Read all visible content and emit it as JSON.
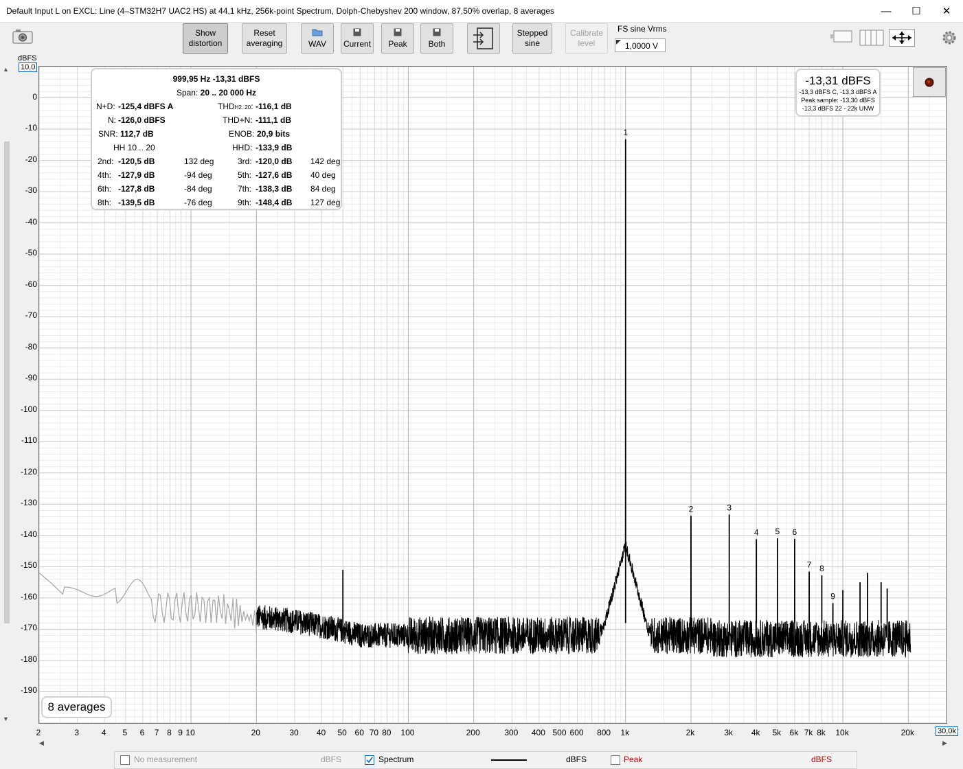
{
  "window": {
    "title": "Default Input L on EXCL: Line (4–STM32H7 UAC2 HS) at 44,1 kHz, 256k-point Spectrum, Dolph-Chebyshev 200 window, 87,50% overlap, 8 averages",
    "minimize_glyph": "—",
    "maximize_glyph": "☐",
    "close_glyph": "✕"
  },
  "toolbar": {
    "show_distortion": [
      "Show",
      "distortion"
    ],
    "reset_averaging": [
      "Reset",
      "averaging"
    ],
    "wav": "WAV",
    "current": "Current",
    "peak": "Peak",
    "both": "Both",
    "stepped_sine": [
      "Stepped",
      "sine"
    ],
    "calibrate_level": [
      "Calibrate",
      "level"
    ],
    "fs_sine_label": "FS sine Vrms",
    "fs_sine_value": "1,0000 V"
  },
  "axes": {
    "y_unit": "dBFS",
    "y_top_box": "10,0",
    "x_right_box": "30,0k",
    "y_ticks": [
      "0",
      "-10",
      "-20",
      "-30",
      "-40",
      "-50",
      "-60",
      "-70",
      "-80",
      "-90",
      "-100",
      "-110",
      "-120",
      "-130",
      "-140",
      "-150",
      "-160",
      "-170",
      "-180",
      "-190"
    ],
    "x_ticks": [
      "2",
      "3",
      "4",
      "5",
      "6",
      "7",
      "8",
      "9",
      "10",
      "20",
      "30",
      "40",
      "50",
      "60",
      "70",
      "80",
      "100",
      "200",
      "300",
      "400",
      "500",
      "600",
      "800",
      "1k",
      "2k",
      "3k",
      "4k",
      "5k",
      "6k",
      "7k",
      "8k",
      "10k",
      "20k"
    ]
  },
  "info": {
    "header": "999,95 Hz  -13,31 dBFS",
    "span_label": "Span:",
    "span_value": "20 .. 20 000 Hz",
    "nd_label": "N+D:",
    "nd_value": "-125,4 dBFS A",
    "thd_label": "THD",
    "thd_sub": "H2..20",
    "thd_value": "-116,1 dB",
    "n_label": "N:",
    "n_value": "-126,0 dBFS",
    "thdn_label": "THD+N:",
    "thdn_value": "-111,1 dB",
    "snr_label": "SNR:",
    "snr_value": "112,7 dB",
    "enob_label": "ENOB:",
    "enob_value": "20,9 bits",
    "hh_label": "HH 10 .. 20",
    "hhd_label": "HHD:",
    "hhd_value": "-133,9 dB",
    "harmonics": [
      {
        "l1": "2nd:",
        "v1": "-120,5 dB",
        "p1": "132 deg",
        "l2": "3rd:",
        "v2": "-120,0 dB",
        "p2": "142 deg"
      },
      {
        "l1": "4th:",
        "v1": "-127,9 dB",
        "p1": "-94 deg",
        "l2": "5th:",
        "v2": "-127,6 dB",
        "p2": "40 deg"
      },
      {
        "l1": "6th:",
        "v1": "-127,8 dB",
        "p1": "-84 deg",
        "l2": "7th:",
        "v2": "-138,3 dB",
        "p2": "84 deg"
      },
      {
        "l1": "8th:",
        "v1": "-139,5 dB",
        "p1": "-76 deg",
        "l2": "9th:",
        "v2": "-148,4 dB",
        "p2": "127 deg"
      }
    ]
  },
  "level": {
    "main": "-13,31 dBFS",
    "line1": "-13,3 dBFS C, -13,3 dBFS A",
    "line2": "Peak sample: -13,30 dBFS",
    "line3": "-13,3 dBFS 22 - 22k UNW"
  },
  "averages_label": "8 averages",
  "footer": {
    "no_measurement": "No measurement",
    "unit1": "dBFS",
    "spectrum": "Spectrum",
    "unit2": "dBFS",
    "peak": "Peak",
    "unit3": "dBFS"
  },
  "colors": {
    "trace": "#000000",
    "trace_grey": "#aaaaaa",
    "peak_red": "#c00000",
    "accent_blue": "#0066cc"
  },
  "chart_data": {
    "type": "line",
    "x_scale": "log",
    "xlim": [
      2,
      30000
    ],
    "ylim": [
      -200,
      10
    ],
    "ylabel": "dBFS",
    "peaks": [
      {
        "label": "1",
        "freq": 1000,
        "db": -13.3
      },
      {
        "label": "2",
        "freq": 2000,
        "db": -133.8
      },
      {
        "label": "3",
        "freq": 3000,
        "db": -133.3
      },
      {
        "label": "4",
        "freq": 4000,
        "db": -141.2
      },
      {
        "label": "5",
        "freq": 5000,
        "db": -140.9
      },
      {
        "label": "6",
        "freq": 6000,
        "db": -141.1
      },
      {
        "label": "7",
        "freq": 7000,
        "db": -151.6
      },
      {
        "label": "8",
        "freq": 8000,
        "db": -152.8
      },
      {
        "label": "9",
        "freq": 9000,
        "db": -161.7
      }
    ],
    "spurs": [
      {
        "freq": 50,
        "db": -151
      },
      {
        "freq": 10000,
        "db": -157.5
      },
      {
        "freq": 12000,
        "db": -155
      },
      {
        "freq": 13000,
        "db": -152
      },
      {
        "freq": 15000,
        "db": -155
      },
      {
        "freq": 16000,
        "db": -157
      }
    ],
    "noise_floor_db": -172
  }
}
